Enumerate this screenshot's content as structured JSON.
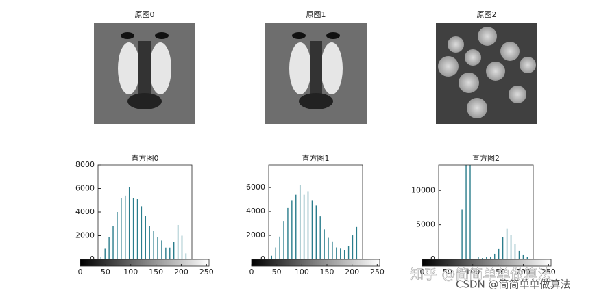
{
  "chart_data": [
    {
      "type": "image",
      "title": "原图0"
    },
    {
      "type": "image",
      "title": "原图1"
    },
    {
      "type": "image",
      "title": "原图2"
    },
    {
      "type": "bar",
      "title": "直方图0",
      "color": "#2a7d8c",
      "x": [
        8,
        19,
        30,
        41,
        52,
        63,
        74,
        85,
        96,
        107,
        118,
        129,
        140,
        151,
        162,
        173,
        184,
        195,
        206,
        217,
        228,
        239
      ],
      "values": [
        200,
        900,
        1900,
        2800,
        4000,
        5200,
        5400,
        6100,
        5200,
        5100,
        4500,
        3700,
        2800,
        2400,
        1900,
        1600,
        1000,
        1000,
        1500,
        2900,
        2000,
        500
      ],
      "xlim": [
        0,
        255
      ],
      "ylim": [
        0,
        8000
      ],
      "yticks": [
        0,
        2000,
        4000,
        6000,
        8000
      ],
      "clim": [
        0,
        255
      ],
      "cticks": [
        0,
        50,
        100,
        150,
        200,
        250
      ]
    },
    {
      "type": "bar",
      "title": "直方图1",
      "color": "#2a7d8c",
      "x": [
        8,
        19,
        30,
        41,
        52,
        63,
        74,
        85,
        96,
        107,
        118,
        129,
        140,
        151,
        162,
        173,
        184,
        195,
        206,
        217,
        228,
        239
      ],
      "values": [
        300,
        1000,
        1900,
        3200,
        4300,
        4900,
        5400,
        6200,
        5400,
        5700,
        4900,
        4500,
        3600,
        2500,
        1800,
        1500,
        1000,
        900,
        800,
        1100,
        2000,
        2700
      ],
      "xlim": [
        0,
        255
      ],
      "ylim": [
        0,
        7900
      ],
      "yticks": [
        0,
        2000,
        4000,
        6000
      ],
      "clim": [
        0,
        255
      ],
      "cticks": [
        0,
        50,
        100,
        150,
        200,
        250
      ]
    },
    {
      "type": "bar",
      "title": "直方图2",
      "color": "#2a7d8c",
      "x": [
        8,
        19,
        30,
        41,
        52,
        63,
        74,
        85,
        96,
        107,
        118,
        129,
        140,
        151,
        162,
        173,
        184,
        195,
        206,
        217,
        228,
        239
      ],
      "values": [
        0,
        0,
        0,
        0,
        0,
        7200,
        16000,
        16000,
        0,
        300,
        200,
        300,
        400,
        800,
        1500,
        3200,
        4500,
        3500,
        2200,
        1200,
        700,
        300
      ],
      "xlim": [
        0,
        255
      ],
      "ylim": [
        0,
        13700
      ],
      "yticks": [
        0,
        5000,
        10000
      ],
      "clim": [
        0,
        255
      ],
      "cticks": [
        0,
        50,
        100,
        150,
        200,
        250
      ]
    }
  ],
  "watermarks": [
    "知乎 @简简单单做算法",
    "CSDN @简简单单做算法"
  ]
}
